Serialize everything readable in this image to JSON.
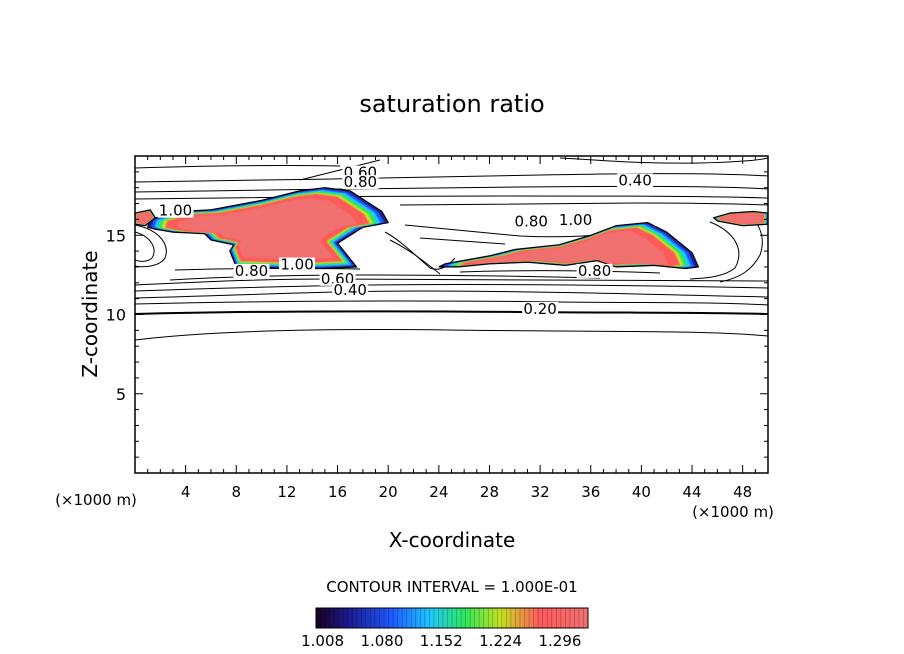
{
  "chart_data": {
    "type": "heatmap",
    "title": "saturation ratio",
    "xlabel": "X-coordinate",
    "ylabel": "Z-coordinate",
    "x_unit_left": "(×1000 m)",
    "x_unit_right": "(×1000 m)",
    "xlim": [
      0,
      50
    ],
    "ylim": [
      0,
      20
    ],
    "x_ticks": [
      4,
      8,
      12,
      16,
      20,
      24,
      28,
      32,
      36,
      40,
      44,
      48
    ],
    "y_ticks": [
      5,
      10,
      15
    ],
    "contour_interval_text": "CONTOUR INTERVAL = 1.000E-01",
    "colorbar": {
      "labels": [
        "1.008",
        "1.080",
        "1.152",
        "1.224",
        "1.296"
      ],
      "range": [
        1.0,
        1.33
      ],
      "colors": [
        "#1a0020",
        "#1a1a90",
        "#1e5aff",
        "#1ec8ff",
        "#2ee85a",
        "#c8e020",
        "#ff5a5a",
        "#f07070"
      ]
    },
    "contour_labels": [
      {
        "text": "0.60",
        "x": 17.8,
        "y": 18.7
      },
      {
        "text": "0.80",
        "x": 17.8,
        "y": 18.1
      },
      {
        "text": "0.40",
        "x": 39.5,
        "y": 18.2
      },
      {
        "text": "1.00",
        "x": 3.2,
        "y": 16.3
      },
      {
        "text": "0.80",
        "x": 31.3,
        "y": 15.6
      },
      {
        "text": "1.00",
        "x": 34.8,
        "y": 15.7
      },
      {
        "text": "0.80",
        "x": 9.2,
        "y": 12.5
      },
      {
        "text": "1.00",
        "x": 12.8,
        "y": 12.9
      },
      {
        "text": "0.60",
        "x": 16.0,
        "y": 12.0
      },
      {
        "text": "0.40",
        "x": 17.0,
        "y": 11.3
      },
      {
        "text": "0.80",
        "x": 36.3,
        "y": 12.5
      },
      {
        "text": "0.20",
        "x": 32.0,
        "y": 10.1
      }
    ],
    "supersaturated_regions": [
      {
        "x": [
          1.0,
          1.2,
          3.5,
          6.0,
          10.0,
          13.0,
          15.0,
          17.0,
          19.5,
          20.0,
          18.0,
          16.0,
          17.5,
          15.0,
          12.0,
          8.0,
          7.5,
          7.8,
          6.0,
          5.5,
          3.0,
          1.5
        ],
        "y": [
          15.5,
          16.0,
          16.5,
          16.6,
          17.2,
          17.8,
          18.0,
          17.8,
          16.5,
          15.8,
          15.5,
          14.5,
          13.0,
          12.9,
          12.9,
          13.0,
          14.0,
          14.4,
          14.7,
          15.1,
          15.2,
          15.4
        ]
      },
      {
        "x": [
          24.5,
          28.0,
          30.0,
          33.5,
          36.0,
          38.0,
          40.5,
          42.0,
          44.0,
          44.5,
          43.5,
          41.0,
          38.0,
          36.5,
          34.0,
          31.0,
          28.0,
          25.5,
          24.0
        ],
        "y": [
          13.2,
          13.7,
          14.1,
          14.4,
          15.0,
          15.6,
          15.8,
          15.2,
          13.9,
          13.0,
          12.9,
          13.1,
          13.0,
          13.4,
          13.1,
          13.3,
          13.2,
          13.0,
          13.0
        ]
      },
      {
        "x": [
          45.7,
          47.0,
          48.8,
          50.0,
          50.0,
          48.0,
          46.0
        ],
        "y": [
          16.1,
          16.4,
          16.5,
          16.4,
          15.7,
          15.6,
          15.9
        ]
      },
      {
        "x": [
          0.0,
          1.2,
          1.6,
          0.8,
          0.0
        ],
        "y": [
          16.4,
          16.6,
          16.1,
          15.6,
          15.7
        ]
      }
    ]
  }
}
